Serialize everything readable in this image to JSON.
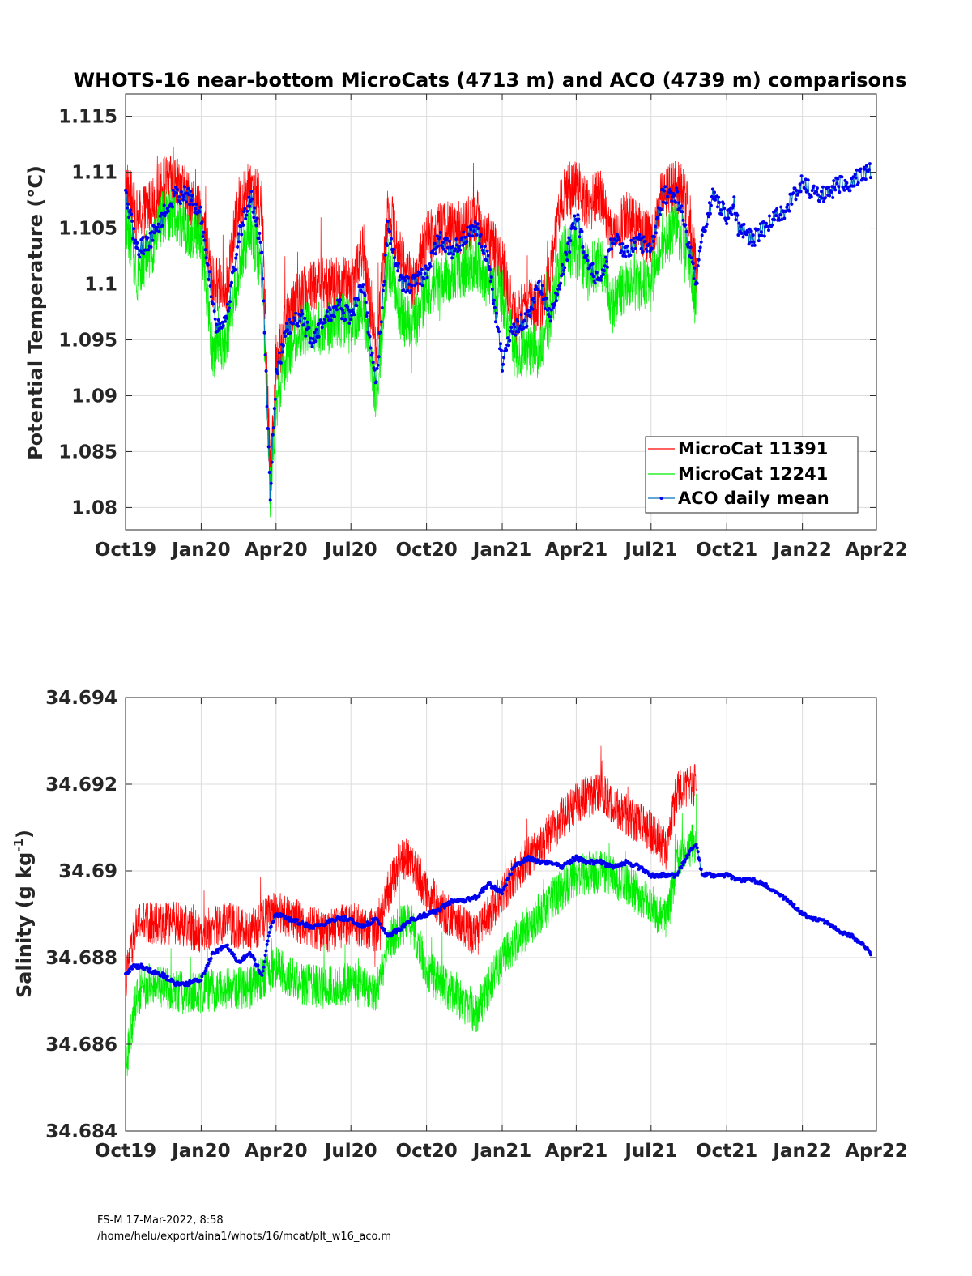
{
  "chart_data": [
    {
      "type": "line",
      "title": "WHOTS-16 near-bottom MicroCats (4713 m) and ACO (4739 m) comparisons",
      "xlabel": "",
      "ylabel": "Potential Temperature (°C)",
      "x_ticks": [
        "Oct19",
        "Jan20",
        "Apr20",
        "Jul20",
        "Oct20",
        "Jan21",
        "Apr21",
        "Jul21",
        "Oct21",
        "Jan22",
        "Apr22"
      ],
      "x_tick_dates": [
        "2019-10-01",
        "2020-01-01",
        "2020-04-01",
        "2020-07-01",
        "2020-10-01",
        "2021-01-01",
        "2021-04-01",
        "2021-07-01",
        "2021-10-01",
        "2022-01-01",
        "2022-04-01"
      ],
      "xlim": [
        "2019-10-01",
        "2022-04-01"
      ],
      "y_ticks": [
        "1.08",
        "1.085",
        "1.09",
        "1.095",
        "1.1",
        "1.105",
        "1.11",
        "1.115"
      ],
      "ylim": [
        1.078,
        1.117
      ],
      "grid": true,
      "legend_position": "bottom-right",
      "series": [
        {
          "name": "MicroCat 11391",
          "color": "#ff0000",
          "style": "noisy-line",
          "x": [
            "2019-10-01",
            "2019-10-15",
            "2019-11-01",
            "2019-11-15",
            "2019-12-01",
            "2019-12-15",
            "2020-01-01",
            "2020-01-15",
            "2020-02-01",
            "2020-02-15",
            "2020-03-01",
            "2020-03-15",
            "2020-03-25",
            "2020-04-01",
            "2020-04-15",
            "2020-05-01",
            "2020-05-15",
            "2020-06-01",
            "2020-06-15",
            "2020-07-01",
            "2020-07-15",
            "2020-08-01",
            "2020-08-15",
            "2020-09-01",
            "2020-09-15",
            "2020-10-01",
            "2020-10-15",
            "2020-11-01",
            "2020-11-15",
            "2020-12-01",
            "2020-12-15",
            "2021-01-01",
            "2021-01-15",
            "2021-02-01",
            "2021-02-15",
            "2021-03-01",
            "2021-03-15",
            "2021-04-01",
            "2021-04-15",
            "2021-05-01",
            "2021-05-15",
            "2021-06-01",
            "2021-06-15",
            "2021-07-01",
            "2021-07-15",
            "2021-08-01",
            "2021-08-15",
            "2021-08-25"
          ],
          "y": [
            1.109,
            1.106,
            1.107,
            1.109,
            1.109,
            1.108,
            1.106,
            1.1,
            1.1,
            1.107,
            1.109,
            1.107,
            1.083,
            1.093,
            1.097,
            1.099,
            1.1,
            1.1,
            1.1,
            1.1,
            1.103,
            1.094,
            1.107,
            1.102,
            1.1,
            1.104,
            1.105,
            1.105,
            1.105,
            1.106,
            1.104,
            1.102,
            1.097,
            1.098,
            1.098,
            1.101,
            1.108,
            1.109,
            1.107,
            1.108,
            1.104,
            1.106,
            1.105,
            1.104,
            1.108,
            1.109,
            1.107,
            1.101
          ],
          "amplitude": 0.0025
        },
        {
          "name": "MicroCat 12241",
          "color": "#00ee00",
          "style": "noisy-line",
          "x": [
            "2019-10-01",
            "2019-10-15",
            "2019-11-01",
            "2019-11-15",
            "2019-12-01",
            "2019-12-15",
            "2020-01-01",
            "2020-01-15",
            "2020-02-01",
            "2020-02-15",
            "2020-03-01",
            "2020-03-15",
            "2020-03-25",
            "2020-04-01",
            "2020-04-15",
            "2020-05-01",
            "2020-05-15",
            "2020-06-01",
            "2020-06-15",
            "2020-07-01",
            "2020-07-15",
            "2020-08-01",
            "2020-08-15",
            "2020-09-01",
            "2020-09-15",
            "2020-10-01",
            "2020-10-15",
            "2020-11-01",
            "2020-11-15",
            "2020-12-01",
            "2020-12-15",
            "2021-01-01",
            "2021-01-15",
            "2021-02-01",
            "2021-02-15",
            "2021-03-01",
            "2021-03-15",
            "2021-04-01",
            "2021-04-15",
            "2021-05-01",
            "2021-05-15",
            "2021-06-01",
            "2021-06-15",
            "2021-07-01",
            "2021-07-15",
            "2021-08-01",
            "2021-08-15",
            "2021-08-25"
          ],
          "y": [
            1.106,
            1.101,
            1.103,
            1.106,
            1.106,
            1.105,
            1.104,
            1.094,
            1.095,
            1.101,
            1.105,
            1.101,
            1.081,
            1.089,
            1.094,
            1.096,
            1.096,
            1.096,
            1.097,
            1.096,
            1.098,
            1.09,
            1.102,
            1.097,
            1.096,
            1.099,
            1.1,
            1.101,
            1.101,
            1.102,
            1.1,
            1.099,
            1.094,
            1.094,
            1.094,
            1.097,
            1.103,
            1.103,
            1.101,
            1.102,
            1.098,
            1.1,
            1.1,
            1.1,
            1.104,
            1.105,
            1.103,
            1.098
          ],
          "amplitude": 0.0025
        },
        {
          "name": "ACO daily mean",
          "color": "#0000ee",
          "style": "line-markers",
          "x": [
            "2019-10-01",
            "2019-10-15",
            "2019-11-01",
            "2019-11-15",
            "2019-12-01",
            "2019-12-15",
            "2020-01-01",
            "2020-01-10",
            "2020-01-20",
            "2020-02-01",
            "2020-02-15",
            "2020-03-01",
            "2020-03-15",
            "2020-03-25",
            "2020-04-01",
            "2020-04-15",
            "2020-05-01",
            "2020-05-15",
            "2020-06-01",
            "2020-06-15",
            "2020-07-01",
            "2020-07-15",
            "2020-08-01",
            "2020-08-15",
            "2020-09-01",
            "2020-09-15",
            "2020-10-01",
            "2020-10-15",
            "2020-11-01",
            "2020-11-15",
            "2020-12-01",
            "2020-12-15",
            "2021-01-01",
            "2021-01-15",
            "2021-02-01",
            "2021-02-15",
            "2021-03-01",
            "2021-03-15",
            "2021-04-01",
            "2021-04-15",
            "2021-05-01",
            "2021-05-15",
            "2021-06-01",
            "2021-06-15",
            "2021-07-01",
            "2021-07-15",
            "2021-08-01",
            "2021-08-15",
            "2021-08-25",
            "2021-09-01",
            "2021-09-15",
            "2021-10-01",
            "2021-10-10",
            "2021-10-15",
            "2021-11-01",
            "2021-11-15",
            "2021-12-01",
            "2021-12-15",
            "2022-01-01",
            "2022-01-15",
            "2022-02-01",
            "2022-02-15",
            "2022-03-01",
            "2022-03-15",
            "2022-03-25"
          ],
          "y": [
            1.108,
            1.103,
            1.104,
            1.106,
            1.108,
            1.108,
            1.106,
            1.101,
            1.096,
            1.097,
            1.104,
            1.108,
            1.103,
            1.081,
            1.092,
            1.096,
            1.097,
            1.095,
            1.097,
            1.098,
            1.097,
            1.1,
            1.091,
            1.105,
            1.1,
            1.1,
            1.101,
            1.104,
            1.103,
            1.104,
            1.105,
            1.102,
            1.093,
            1.096,
            1.097,
            1.1,
            1.097,
            1.101,
            1.106,
            1.102,
            1.1,
            1.104,
            1.103,
            1.104,
            1.103,
            1.108,
            1.108,
            1.104,
            1.1,
            1.104,
            1.108,
            1.106,
            1.107,
            1.105,
            1.104,
            1.105,
            1.106,
            1.107,
            1.109,
            1.108,
            1.108,
            1.109,
            1.109,
            1.11,
            1.11
          ],
          "amplitude": 0.0008
        }
      ]
    },
    {
      "type": "line",
      "title": "",
      "xlabel": "",
      "ylabel": "Salinity (g kg-1)",
      "ylabel_parts": [
        "Salinity (g kg",
        "-1",
        ")"
      ],
      "x_ticks": [
        "Oct19",
        "Jan20",
        "Apr20",
        "Jul20",
        "Oct20",
        "Jan21",
        "Apr21",
        "Jul21",
        "Oct21",
        "Jan22",
        "Apr22"
      ],
      "x_tick_dates": [
        "2019-10-01",
        "2020-01-01",
        "2020-04-01",
        "2020-07-01",
        "2020-10-01",
        "2021-01-01",
        "2021-04-01",
        "2021-07-01",
        "2021-10-01",
        "2022-01-01",
        "2022-04-01"
      ],
      "xlim": [
        "2019-10-01",
        "2022-04-01"
      ],
      "y_ticks": [
        "34.684",
        "34.686",
        "34.688",
        "34.69",
        "34.692",
        "34.694"
      ],
      "ylim": [
        34.684,
        34.694
      ],
      "grid": true,
      "series": [
        {
          "name": "MicroCat 11391",
          "color": "#ff0000",
          "style": "noisy-line",
          "x": [
            "2019-10-01",
            "2019-10-15",
            "2019-11-01",
            "2019-12-01",
            "2020-01-01",
            "2020-02-01",
            "2020-03-01",
            "2020-04-01",
            "2020-05-01",
            "2020-06-01",
            "2020-07-01",
            "2020-08-01",
            "2020-08-15",
            "2020-09-01",
            "2020-09-15",
            "2020-10-01",
            "2020-11-01",
            "2020-12-01",
            "2021-01-01",
            "2021-02-01",
            "2021-03-01",
            "2021-04-01",
            "2021-05-01",
            "2021-06-01",
            "2021-07-01",
            "2021-07-20",
            "2021-08-01",
            "2021-08-25"
          ],
          "y": [
            34.6875,
            34.6888,
            34.6888,
            34.6888,
            34.6886,
            34.6888,
            34.6886,
            34.6891,
            34.6888,
            34.6886,
            34.6888,
            34.6886,
            34.6895,
            34.6903,
            34.6902,
            34.6895,
            34.6889,
            34.6885,
            34.6895,
            34.6903,
            34.6909,
            34.6916,
            34.6918,
            34.6913,
            34.6909,
            34.6905,
            34.6918,
            34.692
          ],
          "amplitude": 0.0005
        },
        {
          "name": "MicroCat 12241",
          "color": "#00ee00",
          "style": "noisy-line",
          "x": [
            "2019-10-01",
            "2019-10-15",
            "2019-11-01",
            "2019-12-01",
            "2020-01-01",
            "2020-02-01",
            "2020-03-01",
            "2020-04-01",
            "2020-05-01",
            "2020-06-01",
            "2020-07-01",
            "2020-08-01",
            "2020-08-15",
            "2020-09-01",
            "2020-09-15",
            "2020-10-01",
            "2020-11-01",
            "2020-12-01",
            "2021-01-01",
            "2021-02-01",
            "2021-03-01",
            "2021-04-01",
            "2021-05-01",
            "2021-06-01",
            "2021-07-01",
            "2021-07-20",
            "2021-08-01",
            "2021-08-25"
          ],
          "y": [
            34.6855,
            34.6872,
            34.6874,
            34.6872,
            34.6872,
            34.6873,
            34.6873,
            34.6878,
            34.6874,
            34.6873,
            34.6874,
            34.6872,
            34.6883,
            34.6888,
            34.6887,
            34.6877,
            34.6872,
            34.6867,
            34.688,
            34.6887,
            34.6893,
            34.6899,
            34.69,
            34.6897,
            34.6892,
            34.6888,
            34.6902,
            34.6907
          ],
          "amplitude": 0.0005
        },
        {
          "name": "ACO daily mean",
          "color": "#0000ee",
          "style": "line-markers",
          "x": [
            "2019-10-01",
            "2019-10-10",
            "2019-10-20",
            "2019-11-01",
            "2019-11-15",
            "2019-12-01",
            "2019-12-15",
            "2020-01-01",
            "2020-01-15",
            "2020-02-01",
            "2020-02-15",
            "2020-03-01",
            "2020-03-15",
            "2020-03-25",
            "2020-04-01",
            "2020-04-15",
            "2020-05-01",
            "2020-05-15",
            "2020-06-01",
            "2020-06-15",
            "2020-07-01",
            "2020-07-15",
            "2020-08-01",
            "2020-08-15",
            "2020-09-01",
            "2020-09-15",
            "2020-10-01",
            "2020-10-15",
            "2020-11-01",
            "2020-11-15",
            "2020-12-01",
            "2020-12-15",
            "2021-01-01",
            "2021-01-15",
            "2021-02-01",
            "2021-02-15",
            "2021-03-01",
            "2021-03-15",
            "2021-04-01",
            "2021-04-15",
            "2021-05-01",
            "2021-05-15",
            "2021-06-01",
            "2021-06-15",
            "2021-07-01",
            "2021-07-15",
            "2021-08-01",
            "2021-08-15",
            "2021-08-25",
            "2021-09-01",
            "2021-09-15",
            "2021-10-01",
            "2021-10-15",
            "2021-11-01",
            "2021-11-15",
            "2021-12-01",
            "2021-12-15",
            "2022-01-01",
            "2022-01-15",
            "2022-02-01",
            "2022-02-15",
            "2022-03-01",
            "2022-03-15",
            "2022-03-25"
          ],
          "y": [
            34.6876,
            34.6878,
            34.6878,
            34.6877,
            34.6876,
            34.6874,
            34.6874,
            34.6875,
            34.6881,
            34.6883,
            34.6879,
            34.6881,
            34.6876,
            34.6887,
            34.689,
            34.6889,
            34.6888,
            34.6887,
            34.6888,
            34.6889,
            34.6889,
            34.6887,
            34.6889,
            34.6885,
            34.6887,
            34.6889,
            34.689,
            34.6891,
            34.6893,
            34.6893,
            34.6894,
            34.6897,
            34.6895,
            34.6901,
            34.6903,
            34.6902,
            34.6902,
            34.6901,
            34.6903,
            34.6902,
            34.6902,
            34.6901,
            34.6902,
            34.6901,
            34.6899,
            34.6899,
            34.6899,
            34.6904,
            34.6906,
            34.6899,
            34.6899,
            34.6899,
            34.6898,
            34.6898,
            34.6897,
            34.6895,
            34.6893,
            34.689,
            34.6889,
            34.6888,
            34.6886,
            34.6885,
            34.6883,
            34.6881
          ],
          "amplitude": 5e-05
        }
      ]
    }
  ],
  "footer": {
    "line1": "FS-M  17-Mar-2022, 8:58",
    "line2": "/home/helu/export/aina1/whots/16/mcat/plt_w16_aco.m"
  }
}
